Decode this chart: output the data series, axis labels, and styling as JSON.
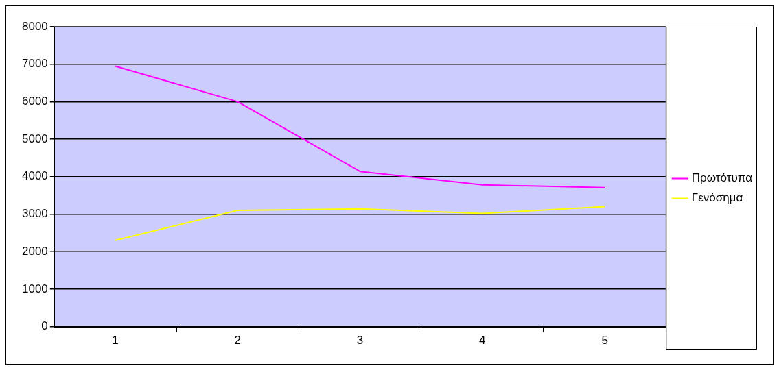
{
  "chart_data": {
    "type": "line",
    "categories": [
      "1",
      "2",
      "3",
      "4",
      "5"
    ],
    "series": [
      {
        "name": "Πρωτότυπα",
        "color": "#ff00ff",
        "values": [
          6950,
          6000,
          4140,
          3780,
          3710
        ]
      },
      {
        "name": "Γενόσημα",
        "color": "#ffff00",
        "values": [
          2300,
          3100,
          3140,
          3020,
          3200
        ]
      }
    ],
    "ylim": [
      0,
      8000
    ],
    "yticks": [
      0,
      1000,
      2000,
      3000,
      4000,
      5000,
      6000,
      7000,
      8000
    ],
    "grid": "y",
    "legend": "right",
    "marker": "none",
    "line_style": "solid"
  }
}
